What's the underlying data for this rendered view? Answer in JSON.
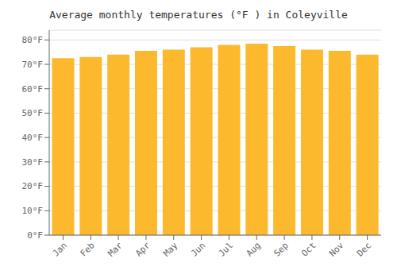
{
  "chart_data": {
    "type": "bar",
    "title": "Average monthly temperatures (°F ) in Coleyville",
    "categories": [
      "Jan",
      "Feb",
      "Mar",
      "Apr",
      "May",
      "Jun",
      "Jul",
      "Aug",
      "Sep",
      "Oct",
      "Nov",
      "Dec"
    ],
    "values": [
      72.5,
      73.0,
      74.0,
      75.5,
      76.0,
      77.0,
      78.0,
      78.5,
      77.5,
      76.0,
      75.5,
      74.0
    ],
    "color": "#FDB92E",
    "ylim": [
      0,
      84
    ],
    "yticks": [
      {
        "value": 0,
        "label": "0°F"
      },
      {
        "value": 10,
        "label": "10°F"
      },
      {
        "value": 20,
        "label": "20°F"
      },
      {
        "value": 30,
        "label": "30°F"
      },
      {
        "value": 40,
        "label": "40°F"
      },
      {
        "value": 50,
        "label": "50°F"
      },
      {
        "value": 60,
        "label": "60°F"
      },
      {
        "value": 70,
        "label": "70°F"
      },
      {
        "value": 80,
        "label": "80°F"
      }
    ],
    "grid": true
  }
}
